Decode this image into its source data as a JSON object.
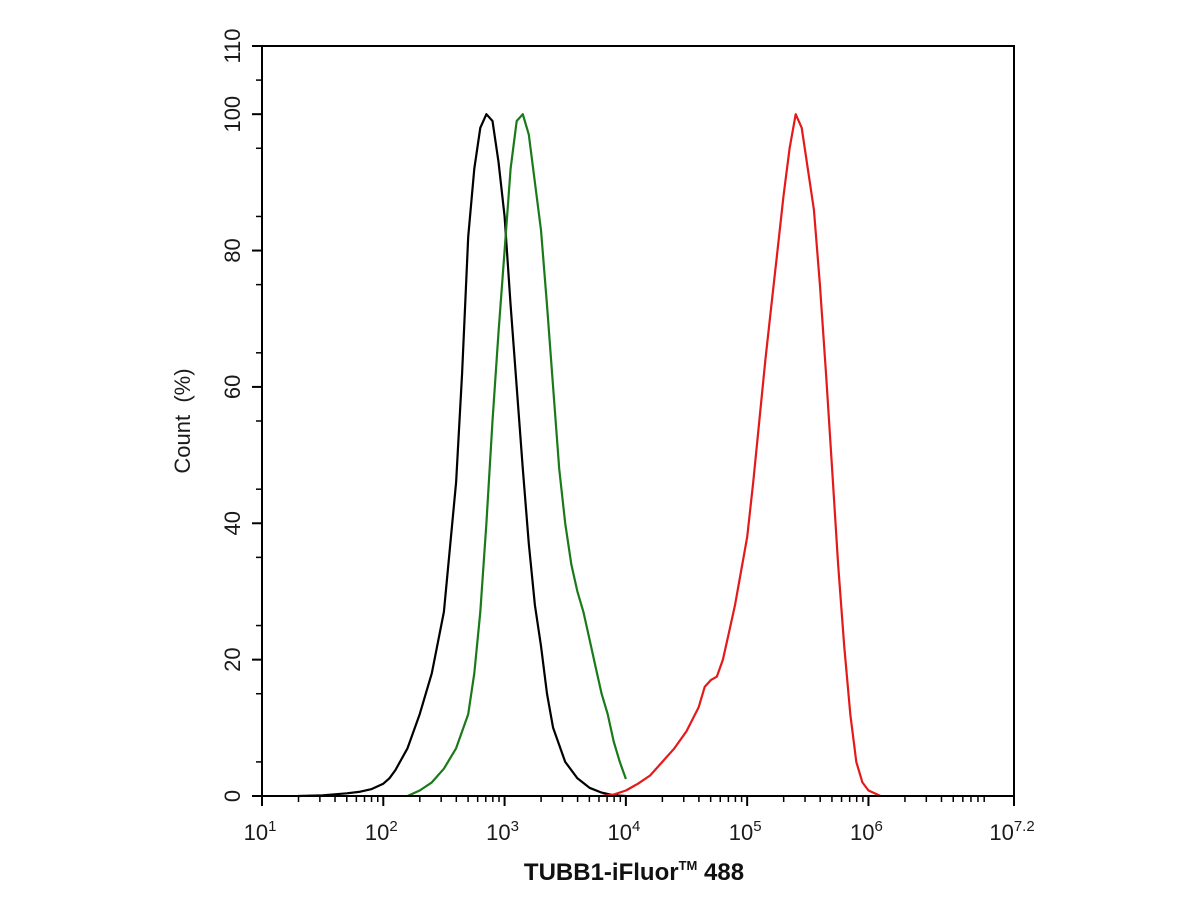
{
  "chart_data": {
    "type": "line",
    "title": "",
    "xlabel": "TUBB1-iFluor™ 488",
    "xlabel_main": "TUBB1-iFluor",
    "xlabel_tm": "TM",
    "xlabel_tail": " 488",
    "ylabel": "Count  (%)",
    "x_scale": "log10",
    "xlim": [
      1,
      7.2
    ],
    "ylim": [
      0,
      110
    ],
    "x_ticks": [
      {
        "base": "10",
        "exp": "1",
        "value": 1
      },
      {
        "base": "10",
        "exp": "2",
        "value": 2
      },
      {
        "base": "10",
        "exp": "3",
        "value": 3
      },
      {
        "base": "10",
        "exp": "4",
        "value": 4
      },
      {
        "base": "10",
        "exp": "5",
        "value": 5
      },
      {
        "base": "10",
        "exp": "6",
        "value": 6
      },
      {
        "base": "10",
        "exp": "7.2",
        "value": 7.2
      }
    ],
    "y_ticks": [
      "0",
      "20",
      "40",
      "60",
      "80",
      "100",
      "110"
    ],
    "grid": false,
    "legend": "none",
    "series": [
      {
        "color": "#000000",
        "points": [
          [
            1.3,
            0
          ],
          [
            1.5,
            0.1
          ],
          [
            1.7,
            0.4
          ],
          [
            1.8,
            0.6
          ],
          [
            1.9,
            1
          ],
          [
            2.0,
            1.8
          ],
          [
            2.05,
            2.6
          ],
          [
            2.1,
            3.8
          ],
          [
            2.2,
            7
          ],
          [
            2.3,
            12
          ],
          [
            2.4,
            18
          ],
          [
            2.5,
            27
          ],
          [
            2.6,
            46
          ],
          [
            2.65,
            62
          ],
          [
            2.7,
            82
          ],
          [
            2.75,
            92
          ],
          [
            2.8,
            98
          ],
          [
            2.85,
            100
          ],
          [
            2.9,
            99
          ],
          [
            2.95,
            93
          ],
          [
            3.0,
            85
          ],
          [
            3.05,
            72
          ],
          [
            3.1,
            60
          ],
          [
            3.15,
            48
          ],
          [
            3.2,
            37
          ],
          [
            3.25,
            28
          ],
          [
            3.3,
            22
          ],
          [
            3.35,
            15
          ],
          [
            3.4,
            10
          ],
          [
            3.5,
            5
          ],
          [
            3.6,
            2.6
          ],
          [
            3.7,
            1.2
          ],
          [
            3.8,
            0.5
          ],
          [
            3.9,
            0.1
          ],
          [
            4.0,
            0
          ]
        ]
      },
      {
        "color": "#1a7a1a",
        "points": [
          [
            2.2,
            0
          ],
          [
            2.3,
            0.8
          ],
          [
            2.4,
            2
          ],
          [
            2.5,
            4
          ],
          [
            2.6,
            7
          ],
          [
            2.7,
            12
          ],
          [
            2.75,
            18
          ],
          [
            2.8,
            27
          ],
          [
            2.85,
            40
          ],
          [
            2.9,
            55
          ],
          [
            2.95,
            68
          ],
          [
            3.0,
            80
          ],
          [
            3.05,
            92
          ],
          [
            3.1,
            99
          ],
          [
            3.15,
            100
          ],
          [
            3.2,
            97
          ],
          [
            3.25,
            90
          ],
          [
            3.3,
            83
          ],
          [
            3.35,
            72
          ],
          [
            3.4,
            60
          ],
          [
            3.45,
            48
          ],
          [
            3.5,
            40
          ],
          [
            3.55,
            34
          ],
          [
            3.6,
            30
          ],
          [
            3.65,
            27
          ],
          [
            3.7,
            23
          ],
          [
            3.75,
            19
          ],
          [
            3.8,
            15
          ],
          [
            3.85,
            12
          ],
          [
            3.9,
            8
          ],
          [
            3.95,
            5
          ],
          [
            4.0,
            2.5
          ]
        ]
      },
      {
        "color": "#e41a1a",
        "points": [
          [
            3.8,
            0
          ],
          [
            3.9,
            0.2
          ],
          [
            4.0,
            0.8
          ],
          [
            4.1,
            1.8
          ],
          [
            4.2,
            3
          ],
          [
            4.3,
            5
          ],
          [
            4.4,
            7
          ],
          [
            4.5,
            9.5
          ],
          [
            4.6,
            13
          ],
          [
            4.65,
            16
          ],
          [
            4.7,
            17
          ],
          [
            4.75,
            17.5
          ],
          [
            4.8,
            20
          ],
          [
            4.85,
            24
          ],
          [
            4.9,
            28
          ],
          [
            4.95,
            33
          ],
          [
            5.0,
            38
          ],
          [
            5.05,
            46
          ],
          [
            5.1,
            55
          ],
          [
            5.15,
            64
          ],
          [
            5.2,
            72
          ],
          [
            5.25,
            80
          ],
          [
            5.3,
            88
          ],
          [
            5.35,
            95
          ],
          [
            5.4,
            100
          ],
          [
            5.45,
            98
          ],
          [
            5.5,
            92
          ],
          [
            5.55,
            86
          ],
          [
            5.6,
            75
          ],
          [
            5.65,
            62
          ],
          [
            5.7,
            48
          ],
          [
            5.75,
            34
          ],
          [
            5.8,
            22
          ],
          [
            5.85,
            12
          ],
          [
            5.9,
            5
          ],
          [
            5.95,
            2
          ],
          [
            6.0,
            0.8
          ],
          [
            6.1,
            0
          ]
        ]
      }
    ]
  }
}
